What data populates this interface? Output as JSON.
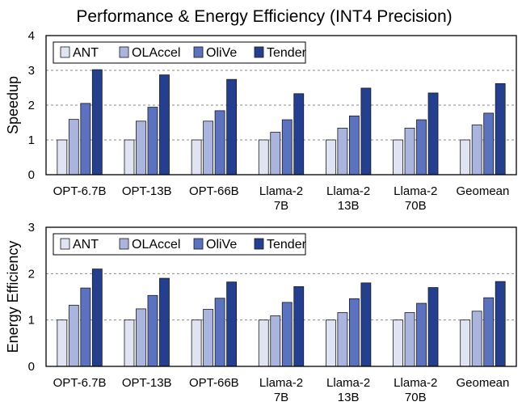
{
  "figure_title": "Performance & Energy Efficiency (INT4 Precision)",
  "legend_entries": [
    "ANT",
    "OLAccel",
    "OliVe",
    "Tender"
  ],
  "series_colors": [
    "#dfe3f2",
    "#a9b5de",
    "#5a72c0",
    "#243f8f"
  ],
  "chart_data": [
    {
      "type": "bar",
      "title": "Performance & Energy Efficiency (INT4 Precision)",
      "xlabel": "",
      "ylabel": "Speedup",
      "ylim": [
        0,
        4
      ],
      "yticks": [
        "0",
        "1",
        "2",
        "3",
        "4"
      ],
      "grid": true,
      "legend_position": "top-left",
      "categories": [
        [
          "OPT-6.7B"
        ],
        [
          "OPT-13B"
        ],
        [
          "OPT-66B"
        ],
        [
          "Llama-2",
          "7B"
        ],
        [
          "Llama-2",
          "13B"
        ],
        [
          "Llama-2",
          "70B"
        ],
        [
          "Geomean"
        ]
      ],
      "series": [
        {
          "name": "ANT",
          "values": [
            1.0,
            1.0,
            1.0,
            1.0,
            1.0,
            1.0,
            1.0
          ]
        },
        {
          "name": "OLAccel",
          "values": [
            1.59,
            1.54,
            1.54,
            1.22,
            1.34,
            1.34,
            1.43
          ]
        },
        {
          "name": "OliVe",
          "values": [
            2.05,
            1.94,
            1.84,
            1.58,
            1.69,
            1.58,
            1.77
          ]
        },
        {
          "name": "Tender",
          "values": [
            3.02,
            2.87,
            2.74,
            2.33,
            2.49,
            2.35,
            2.62
          ]
        }
      ]
    },
    {
      "type": "bar",
      "title": "",
      "xlabel": "",
      "ylabel": "Energy Efficiency",
      "ylim": [
        0,
        3
      ],
      "yticks": [
        "0",
        "1",
        "2",
        "3"
      ],
      "grid": true,
      "legend_position": "top-left",
      "categories": [
        [
          "OPT-6.7B"
        ],
        [
          "OPT-13B"
        ],
        [
          "OPT-66B"
        ],
        [
          "Llama-2",
          "7B"
        ],
        [
          "Llama-2",
          "13B"
        ],
        [
          "Llama-2",
          "70B"
        ],
        [
          "Geomean"
        ]
      ],
      "series": [
        {
          "name": "ANT",
          "values": [
            1.0,
            1.0,
            1.0,
            1.0,
            1.0,
            1.0,
            1.0
          ]
        },
        {
          "name": "OLAccel",
          "values": [
            1.32,
            1.24,
            1.23,
            1.09,
            1.16,
            1.16,
            1.19
          ]
        },
        {
          "name": "OliVe",
          "values": [
            1.69,
            1.53,
            1.47,
            1.38,
            1.46,
            1.36,
            1.48
          ]
        },
        {
          "name": "Tender",
          "values": [
            2.1,
            1.9,
            1.82,
            1.72,
            1.8,
            1.7,
            1.83
          ]
        }
      ]
    }
  ]
}
